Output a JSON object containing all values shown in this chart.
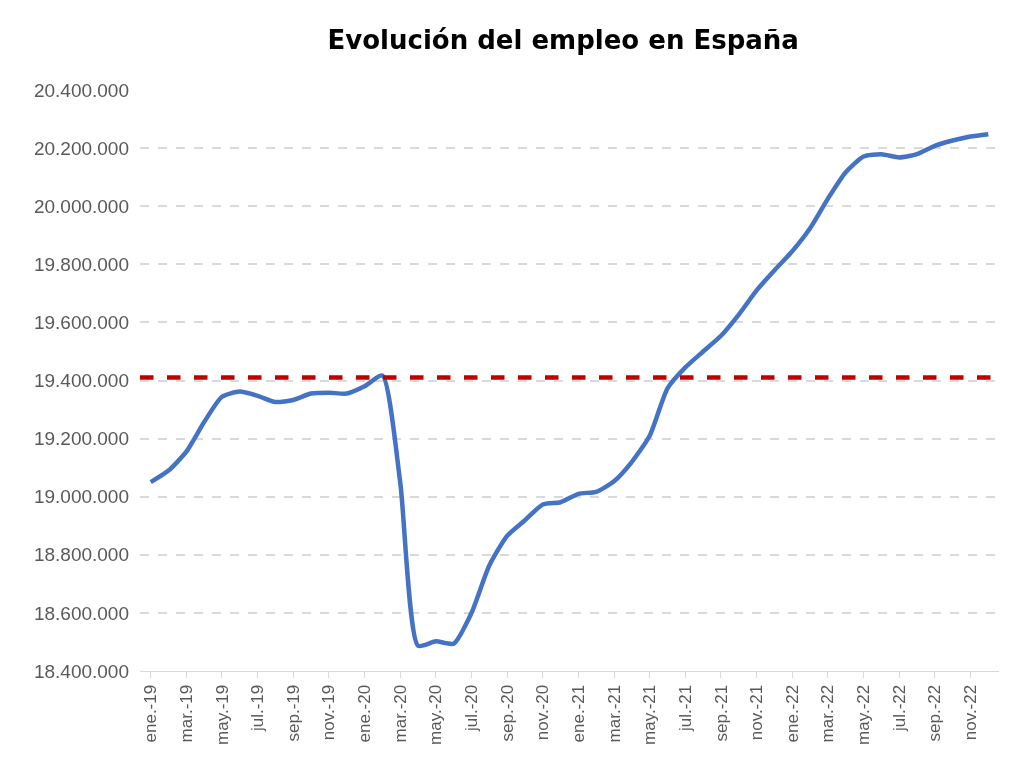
{
  "chart_data": {
    "type": "line",
    "title": "Evolución del empleo en España",
    "categories": [
      "ene.-19",
      null,
      "mar.-19",
      null,
      "may.-19",
      null,
      "jul.-19",
      null,
      "sep.-19",
      null,
      "nov.-19",
      null,
      "ene.-20",
      null,
      "mar.-20",
      null,
      "may.-20",
      null,
      "jul.-20",
      null,
      "sep.-20",
      null,
      "nov.-20",
      null,
      "ene.-21",
      null,
      "mar.-21",
      null,
      "may.-21",
      null,
      "jul.-21",
      null,
      "sep.-21",
      null,
      "nov.-21",
      null,
      "ene.-22",
      null,
      "mar.-22",
      null,
      "may.-22",
      null,
      "jul.-22",
      null,
      "sep.-22",
      null,
      "nov.-22",
      null
    ],
    "series": [
      {
        "color": "#4472c4",
        "values": [
          19050000,
          19090000,
          19155000,
          19257000,
          19344000,
          19362000,
          19347000,
          19326000,
          19333000,
          19355000,
          19358000,
          19355000,
          19380000,
          19417000,
          19050000,
          18487000,
          18502000,
          18494000,
          18600000,
          18763000,
          18865000,
          18919000,
          18973000,
          18981000,
          19010000,
          19017000,
          19053000,
          19120000,
          19210000,
          19373000,
          19445000,
          19500000,
          19554000,
          19627000,
          19710000,
          19779000,
          19845000,
          19924000,
          20026000,
          20117000,
          20171000,
          20179000,
          20168000,
          20179000,
          20208000,
          20226000,
          20240000,
          20248000
        ]
      }
    ],
    "ylim": [
      18400000,
      20400000
    ],
    "yticks": [
      {
        "value": 18400000,
        "label": "18.400.000"
      },
      {
        "value": 18600000,
        "label": "18.600.000"
      },
      {
        "value": 18800000,
        "label": "18.800.000"
      },
      {
        "value": 19000000,
        "label": "19.000.000"
      },
      {
        "value": 19200000,
        "label": "19.200.000"
      },
      {
        "value": 19400000,
        "label": "19.400.000"
      },
      {
        "value": 19600000,
        "label": "19.600.000"
      },
      {
        "value": 19800000,
        "label": "19.800.000"
      },
      {
        "value": 20000000,
        "label": "20.000.000"
      },
      {
        "value": 20200000,
        "label": "20.200.000"
      },
      {
        "value": 20400000,
        "label": "20.400.000"
      }
    ],
    "ref_lines": [
      {
        "axis": "y",
        "value": 19410000,
        "color": "#c00000",
        "line_style": "dashed"
      }
    ],
    "grid": "y",
    "marker": "none",
    "line_style": "solid"
  }
}
